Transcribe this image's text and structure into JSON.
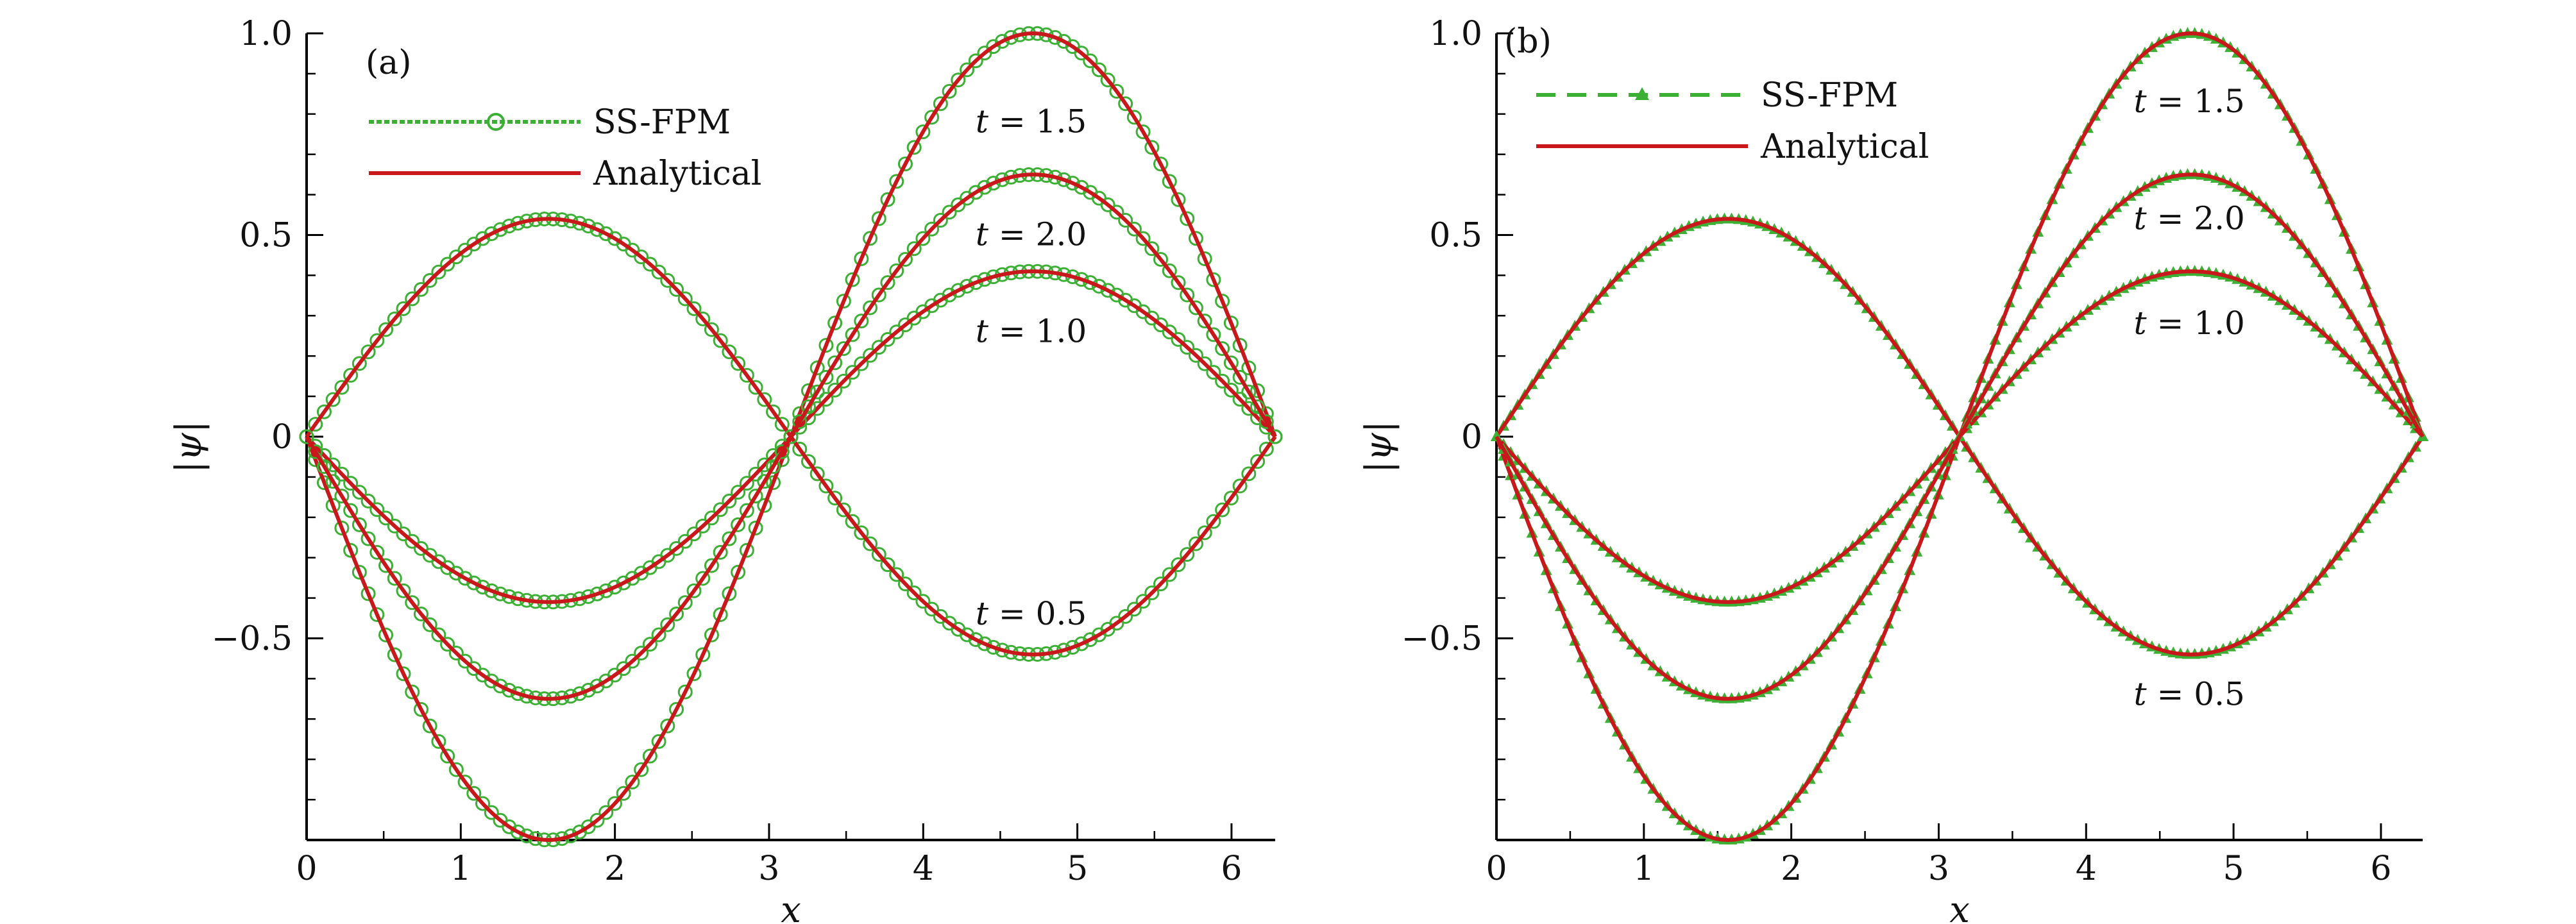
{
  "colors": {
    "ssfpm": "#3cb034",
    "analytical": "#c8181c",
    "axis": "#000000"
  },
  "chart_data": [
    {
      "type": "line",
      "panel_label": "(a)",
      "xlabel": "x",
      "ylabel": "|ψ|",
      "xlim": [
        0,
        6.2832
      ],
      "ylim": [
        -1.0,
        1.0
      ],
      "xticks": [
        0,
        1,
        2,
        3,
        4,
        5,
        6
      ],
      "xtick_labels": [
        "0",
        "1",
        "2",
        "3",
        "4",
        "5",
        "6"
      ],
      "yticks": [
        -0.5,
        0,
        0.5,
        1.0
      ],
      "ytick_labels": [
        "−0.5",
        "0",
        "0.5",
        "1.0"
      ],
      "legend": {
        "position": "top-left",
        "entries": [
          "SS-FPM",
          "Analytical"
        ]
      },
      "marker": "circle",
      "series": [
        {
          "name": "Analytical",
          "curve_label": "t = 0.5",
          "amplitude_first_half": 0.54,
          "amplitude_second_half": -0.54
        },
        {
          "name": "Analytical",
          "curve_label": "t = 1.0",
          "amplitude_first_half": -0.41,
          "amplitude_second_half": 0.41
        },
        {
          "name": "Analytical",
          "curve_label": "t = 1.5",
          "amplitude_first_half": -1.0,
          "amplitude_second_half": 1.0
        },
        {
          "name": "Analytical",
          "curve_label": "t = 2.0",
          "amplitude_first_half": -0.65,
          "amplitude_second_half": 0.65
        }
      ],
      "curve_labels": [
        {
          "text": "t = 1.5",
          "x": 4.7,
          "y": 0.78
        },
        {
          "text": "t = 2.0",
          "x": 4.7,
          "y": 0.5
        },
        {
          "text": "t = 1.0",
          "x": 4.7,
          "y": 0.26
        },
        {
          "text": "t = 0.5",
          "x": 4.7,
          "y": -0.44
        }
      ]
    },
    {
      "type": "line",
      "panel_label": "(b)",
      "xlabel": "x",
      "ylabel": "|ψ|",
      "xlim": [
        0,
        6.2832
      ],
      "ylim": [
        -1.0,
        1.0
      ],
      "xticks": [
        0,
        1,
        2,
        3,
        4,
        5,
        6
      ],
      "xtick_labels": [
        "0",
        "1",
        "2",
        "3",
        "4",
        "5",
        "6"
      ],
      "yticks": [
        -0.5,
        0,
        0.5,
        1.0
      ],
      "ytick_labels": [
        "−0.5",
        "0",
        "0.5",
        "1.0"
      ],
      "legend": {
        "position": "top-left",
        "entries": [
          "SS-FPM",
          "Analytical"
        ]
      },
      "marker": "triangle",
      "series": [
        {
          "name": "Analytical",
          "curve_label": "t = 0.5",
          "amplitude_first_half": 0.54,
          "amplitude_second_half": -0.54
        },
        {
          "name": "Analytical",
          "curve_label": "t = 1.0",
          "amplitude_first_half": -0.41,
          "amplitude_second_half": 0.41
        },
        {
          "name": "Analytical",
          "curve_label": "t = 1.5",
          "amplitude_first_half": -1.0,
          "amplitude_second_half": 1.0
        },
        {
          "name": "Analytical",
          "curve_label": "t = 2.0",
          "amplitude_first_half": -0.65,
          "amplitude_second_half": 0.65
        }
      ],
      "curve_labels": [
        {
          "text": "t = 1.5",
          "x": 4.7,
          "y": 0.83
        },
        {
          "text": "t = 2.0",
          "x": 4.7,
          "y": 0.54
        },
        {
          "text": "t = 1.0",
          "x": 4.7,
          "y": 0.28
        },
        {
          "text": "t = 0.5",
          "x": 4.7,
          "y": -0.64
        }
      ]
    }
  ]
}
